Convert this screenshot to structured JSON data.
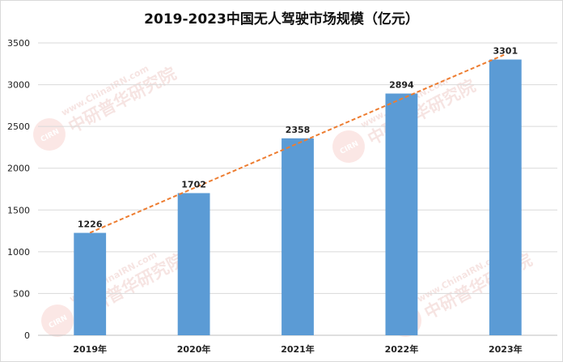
{
  "colors": {
    "bar": "#5b9bd5",
    "trendline": "#ed7d31",
    "grid": "#d9d9d9"
  },
  "watermark": {
    "url": "www.ChinaIRN.com",
    "name": "中研普华研究院",
    "logo": "CIRN"
  },
  "chart_data": {
    "type": "bar",
    "title": "2019-2023中国无人驾驶市场规模（亿元）",
    "categories": [
      "2019年",
      "2020年",
      "2021年",
      "2022年",
      "2023年"
    ],
    "values": [
      1226,
      1702,
      2358,
      2894,
      3301
    ],
    "ylim": [
      0,
      3500
    ],
    "yticks": [
      0,
      500,
      1000,
      1500,
      2000,
      2500,
      3000,
      3500
    ],
    "grid": true,
    "data_labels": true,
    "trendline": "linear, dashed"
  }
}
